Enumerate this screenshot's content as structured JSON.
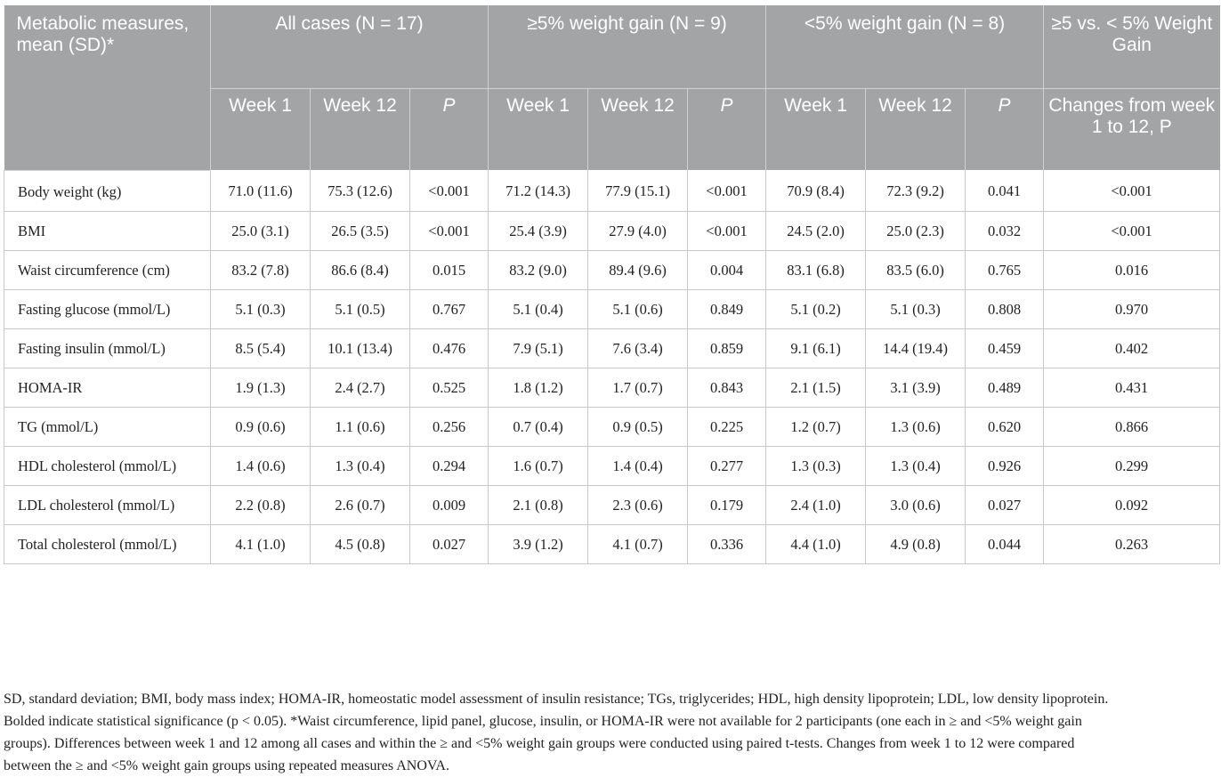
{
  "table": {
    "header_row1": [
      "Metabolic measures, mean (SD)*",
      "All cases (N = 17)",
      "≥5% weight gain (N = 9)",
      "<5% weight gain (N = 8)",
      "≥5 vs. < 5% Weight Gain"
    ],
    "header_row2": [
      "Week 1",
      "Week 12",
      "P",
      "Week 1",
      "Week 12",
      "P",
      "Week 1",
      "Week 12",
      "P",
      "Changes from week 1 to 12, P"
    ],
    "rows": [
      [
        "Body weight (kg)",
        "71.0 (11.6)",
        "75.3 (12.6)",
        "<0.001",
        "71.2 (14.3)",
        "77.9 (15.1)",
        "<0.001",
        "70.9 (8.4)",
        "72.3 (9.2)",
        "0.041",
        "<0.001"
      ],
      [
        "BMI",
        "25.0 (3.1)",
        "26.5 (3.5)",
        "<0.001",
        "25.4 (3.9)",
        "27.9 (4.0)",
        "<0.001",
        "24.5 (2.0)",
        "25.0 (2.3)",
        "0.032",
        "<0.001"
      ],
      [
        "Waist circumference (cm)",
        "83.2 (7.8)",
        "86.6 (8.4)",
        "0.015",
        "83.2 (9.0)",
        "89.4 (9.6)",
        "0.004",
        "83.1 (6.8)",
        "83.5 (6.0)",
        "0.765",
        "0.016"
      ],
      [
        "Fasting glucose (mmol/L)",
        "5.1 (0.3)",
        "5.1 (0.5)",
        "0.767",
        "5.1 (0.4)",
        "5.1 (0.6)",
        "0.849",
        "5.1 (0.2)",
        "5.1 (0.3)",
        "0.808",
        "0.970"
      ],
      [
        "Fasting insulin (mmol/L)",
        "8.5 (5.4)",
        "10.1 (13.4)",
        "0.476",
        "7.9 (5.1)",
        "7.6 (3.4)",
        "0.859",
        "9.1 (6.1)",
        "14.4 (19.4)",
        "0.459",
        "0.402"
      ],
      [
        "HOMA-IR",
        "1.9 (1.3)",
        "2.4 (2.7)",
        "0.525",
        "1.8 (1.2)",
        "1.7 (0.7)",
        "0.843",
        "2.1 (1.5)",
        "3.1 (3.9)",
        "0.489",
        "0.431"
      ],
      [
        "TG (mmol/L)",
        "0.9 (0.6)",
        "1.1 (0.6)",
        "0.256",
        "0.7 (0.4)",
        "0.9 (0.5)",
        "0.225",
        "1.2 (0.7)",
        "1.3 (0.6)",
        "0.620",
        "0.866"
      ],
      [
        "HDL cholesterol (mmol/L)",
        "1.4 (0.6)",
        "1.3 (0.4)",
        "0.294",
        "1.6 (0.7)",
        "1.4 (0.4)",
        "0.277",
        "1.3 (0.3)",
        "1.3 (0.4)",
        "0.926",
        "0.299"
      ],
      [
        "LDL cholesterol (mmol/L)",
        "2.2 (0.8)",
        "2.6 (0.7)",
        "0.009",
        "2.1 (0.8)",
        "2.3 (0.6)",
        "0.179",
        "2.4 (1.0)",
        "3.0 (0.6)",
        "0.027",
        "0.092"
      ],
      [
        "Total cholesterol (mmol/L)",
        "4.1 (1.0)",
        "4.5 (0.8)",
        "0.027",
        "3.9 (1.2)",
        "4.1 (0.7)",
        "0.336",
        "4.4 (1.0)",
        "4.9 (0.8)",
        "0.044",
        "0.263"
      ]
    ]
  },
  "footnote": {
    "lines": [
      "SD, standard deviation; BMI, body mass index; HOMA-IR, homeostatic model assessment of insulin resistance; TGs, triglycerides; HDL, high density lipoprotein; LDL, low density lipoprotein.",
      "Bolded indicate statistical significance (p < 0.05). *Waist circumference, lipid panel, glucose, insulin, or HOMA-IR were not available for 2 participants (one each in ≥ and <5% weight gain",
      "groups). Differences between week 1 and 12 among all cases and within the ≥ and <5% weight gain groups were conducted using paired t-tests. Changes from week 1 to 12 were compared",
      "between the ≥ and <5% weight gain groups using repeated measures ANOVA."
    ]
  }
}
